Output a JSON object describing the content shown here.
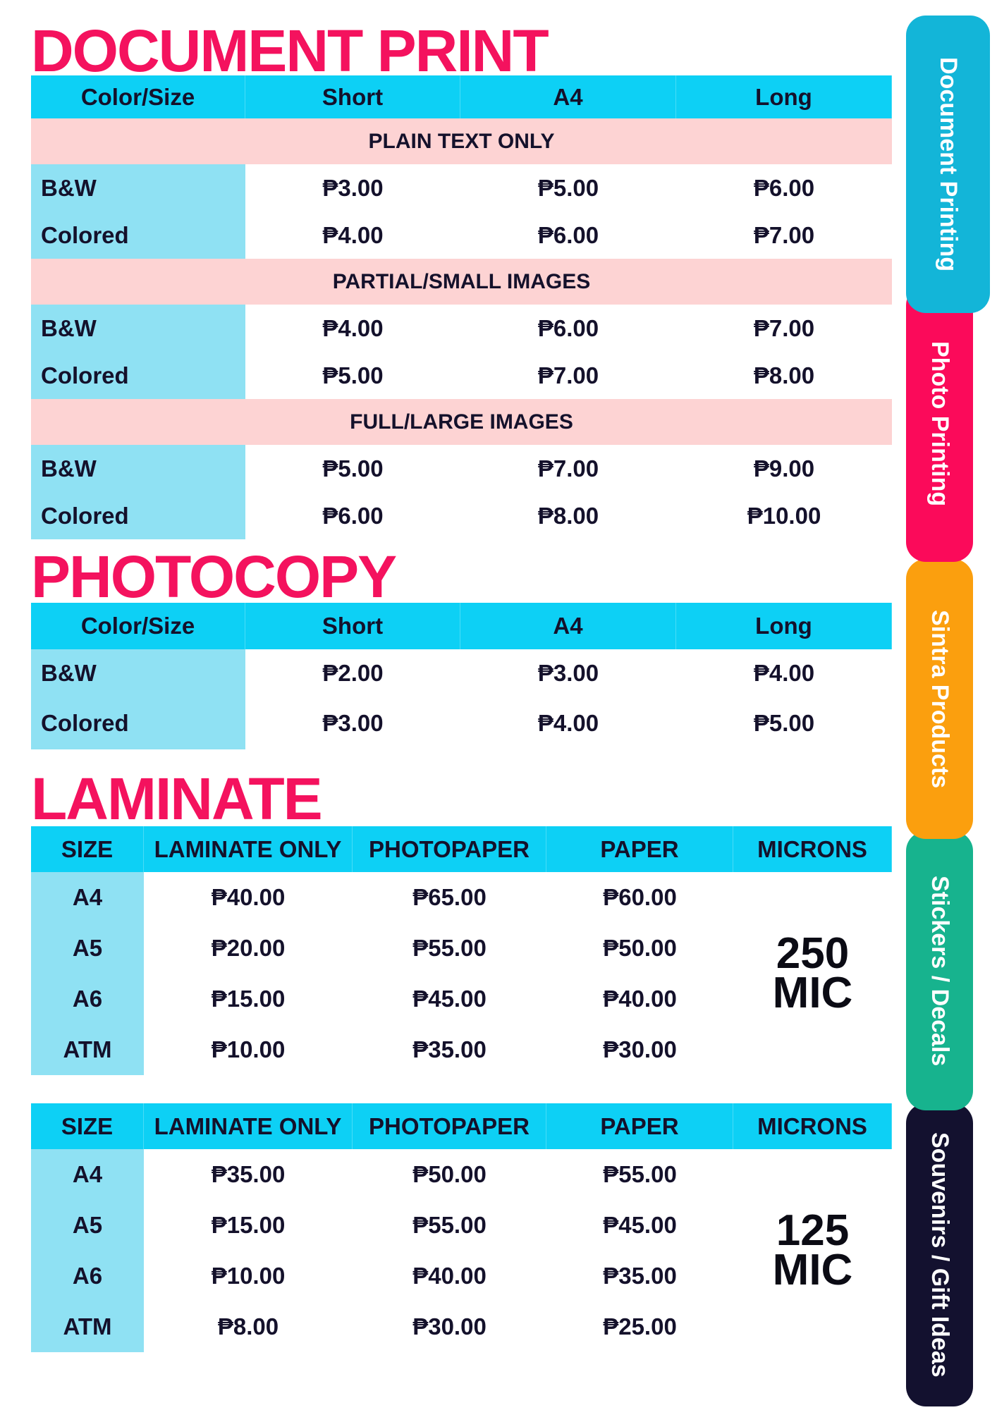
{
  "document_print": {
    "title": "DOCUMENT PRINT",
    "headers": [
      "Color/Size",
      "Short",
      "A4",
      "Long"
    ],
    "sections": [
      {
        "label": "PLAIN TEXT ONLY",
        "rows": [
          {
            "label": "B&W",
            "values": [
              "₱3.00",
              "₱5.00",
              "₱6.00"
            ]
          },
          {
            "label": "Colored",
            "values": [
              "₱4.00",
              "₱6.00",
              "₱7.00"
            ]
          }
        ]
      },
      {
        "label": "PARTIAL/SMALL IMAGES",
        "rows": [
          {
            "label": "B&W",
            "values": [
              "₱4.00",
              "₱6.00",
              "₱7.00"
            ]
          },
          {
            "label": "Colored",
            "values": [
              "₱5.00",
              "₱7.00",
              "₱8.00"
            ]
          }
        ]
      },
      {
        "label": "FULL/LARGE IMAGES",
        "rows": [
          {
            "label": "B&W",
            "values": [
              "₱5.00",
              "₱7.00",
              "₱9.00"
            ]
          },
          {
            "label": "Colored",
            "values": [
              "₱6.00",
              "₱8.00",
              "₱10.00"
            ]
          }
        ]
      }
    ]
  },
  "photocopy": {
    "title": "PHOTOCOPY",
    "headers": [
      "Color/Size",
      "Short",
      "A4",
      "Long"
    ],
    "rows": [
      {
        "label": "B&W",
        "values": [
          "₱2.00",
          "₱3.00",
          "₱4.00"
        ]
      },
      {
        "label": "Colored",
        "values": [
          "₱3.00",
          "₱4.00",
          "₱5.00"
        ]
      }
    ]
  },
  "laminate": {
    "title": "LAMINATE",
    "tables": [
      {
        "headers": [
          "SIZE",
          "LAMINATE ONLY",
          "PHOTOPAPER",
          "PAPER",
          "MICRONS"
        ],
        "microns_line1": "250",
        "microns_line2": "MIC",
        "rows": [
          {
            "label": "A4",
            "values": [
              "₱40.00",
              "₱65.00",
              "₱60.00"
            ]
          },
          {
            "label": "A5",
            "values": [
              "₱20.00",
              "₱55.00",
              "₱50.00"
            ]
          },
          {
            "label": "A6",
            "values": [
              "₱15.00",
              "₱45.00",
              "₱40.00"
            ]
          },
          {
            "label": "ATM",
            "values": [
              "₱10.00",
              "₱35.00",
              "₱30.00"
            ]
          }
        ]
      },
      {
        "headers": [
          "SIZE",
          "LAMINATE ONLY",
          "PHOTOPAPER",
          "PAPER",
          "MICRONS"
        ],
        "microns_line1": "125",
        "microns_line2": "MIC",
        "rows": [
          {
            "label": "A4",
            "values": [
              "₱35.00",
              "₱50.00",
              "₱55.00"
            ]
          },
          {
            "label": "A5",
            "values": [
              "₱15.00",
              "₱55.00",
              "₱45.00"
            ]
          },
          {
            "label": "A6",
            "values": [
              "₱10.00",
              "₱40.00",
              "₱35.00"
            ]
          },
          {
            "label": "ATM",
            "values": [
              "₱8.00",
              "₱30.00",
              "₱25.00"
            ]
          }
        ]
      }
    ]
  },
  "tabs": [
    {
      "label": "Document Printing",
      "color": "#13b5d8"
    },
    {
      "label": "Photo Printing",
      "color": "#fb0a5a"
    },
    {
      "label": "Sintra Products",
      "color": "#fb9f0e"
    },
    {
      "label": "Stickers / Decals",
      "color": "#17b38e"
    },
    {
      "label": "Souvenirs / Gift Ideas",
      "color": "#13112f"
    }
  ],
  "colors": {
    "title": "#f4125e",
    "header": "#0dd0f5",
    "label_col": "#8fe1f3",
    "band": "#fdd3d3",
    "text": "#14112b"
  }
}
